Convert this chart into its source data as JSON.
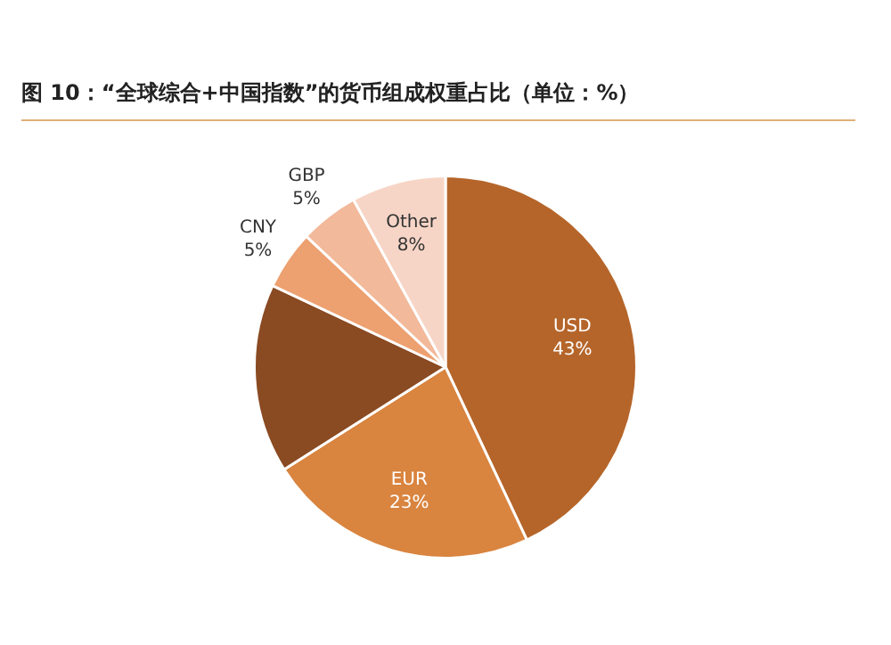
{
  "chart_data": {
    "type": "pie",
    "title": "图 10：“全球综合+中国指数”的货币组成权重占比（单位：%）",
    "categories": [
      "USD",
      "EUR",
      null,
      "CNY",
      "GBP",
      "Other"
    ],
    "values": [
      43,
      23,
      16,
      5,
      5,
      8
    ],
    "value_labels": [
      "43%",
      "23%",
      null,
      "5%",
      "5%",
      "8%"
    ],
    "colors": [
      "#b5652a",
      "#d9843f",
      "#8a4a22",
      "#eda070",
      "#f2b99a",
      "#f7d5c6"
    ],
    "legend": false
  }
}
